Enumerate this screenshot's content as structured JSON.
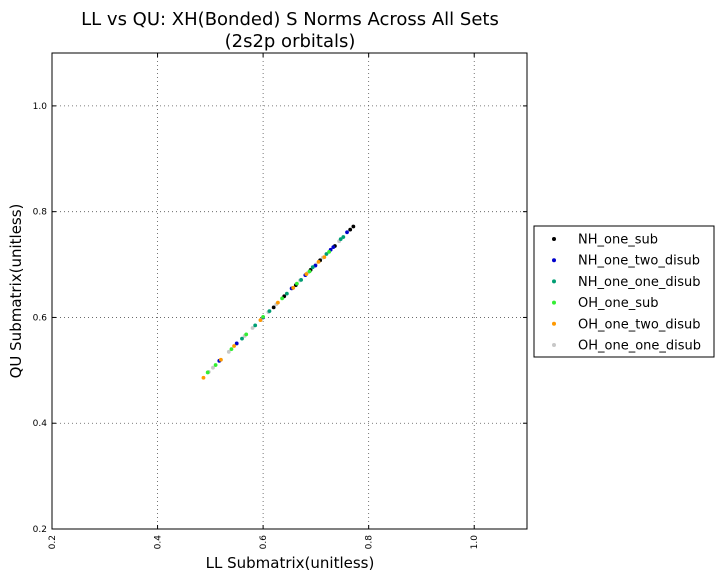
{
  "chart_data": {
    "type": "scatter",
    "title": [
      "LL vs QU: XH(Bonded) S Norms Across All Sets",
      "(2s2p orbitals)"
    ],
    "xlabel": "LL Submatrix(unitless)",
    "ylabel": "QU Submatrix(unitless)",
    "xlim": [
      0.2,
      1.1
    ],
    "ylim": [
      0.2,
      1.1
    ],
    "xticks": [
      "0.2",
      "0.4",
      "0.6",
      "0.8",
      "1.0"
    ],
    "yticks": [
      "0.2",
      "0.4",
      "0.6",
      "0.8",
      "1.0"
    ],
    "grid": true,
    "legend_position": "outside-right",
    "series": [
      {
        "name": "NH_one_sub",
        "color": "#000000",
        "points": [
          [
            0.771,
            0.772
          ],
          [
            0.765,
            0.766
          ],
          [
            0.736,
            0.735
          ],
          [
            0.708,
            0.708
          ],
          [
            0.69,
            0.69
          ],
          [
            0.662,
            0.661
          ],
          [
            0.64,
            0.64
          ],
          [
            0.62,
            0.619
          ]
        ]
      },
      {
        "name": "NH_one_two_disub",
        "color": "#0000cc",
        "points": [
          [
            0.759,
            0.761
          ],
          [
            0.733,
            0.733
          ],
          [
            0.728,
            0.728
          ],
          [
            0.699,
            0.698
          ],
          [
            0.68,
            0.68
          ],
          [
            0.654,
            0.655
          ],
          [
            0.6,
            0.6
          ],
          [
            0.55,
            0.551
          ],
          [
            0.517,
            0.518
          ]
        ]
      },
      {
        "name": "NH_one_one_disub",
        "color": "#009e73",
        "points": [
          [
            0.752,
            0.752
          ],
          [
            0.747,
            0.748
          ],
          [
            0.72,
            0.72
          ],
          [
            0.694,
            0.695
          ],
          [
            0.672,
            0.671
          ],
          [
            0.645,
            0.645
          ],
          [
            0.612,
            0.612
          ],
          [
            0.585,
            0.585
          ],
          [
            0.56,
            0.56
          ]
        ]
      },
      {
        "name": "OH_one_sub",
        "color": "#33ee33",
        "points": [
          [
            0.725,
            0.724
          ],
          [
            0.688,
            0.687
          ],
          [
            0.664,
            0.664
          ],
          [
            0.636,
            0.636
          ],
          [
            0.6,
            0.601
          ],
          [
            0.568,
            0.568
          ],
          [
            0.54,
            0.54
          ],
          [
            0.51,
            0.51
          ],
          [
            0.495,
            0.496
          ]
        ]
      },
      {
        "name": "OH_one_two_disub",
        "color": "#ff9900",
        "points": [
          [
            0.716,
            0.714
          ],
          [
            0.705,
            0.705
          ],
          [
            0.682,
            0.682
          ],
          [
            0.657,
            0.656
          ],
          [
            0.628,
            0.628
          ],
          [
            0.595,
            0.595
          ],
          [
            0.545,
            0.546
          ],
          [
            0.52,
            0.52
          ],
          [
            0.487,
            0.486
          ]
        ]
      },
      {
        "name": "OH_one_one_disub",
        "color": "#c8c8c8",
        "points": [
          [
            0.744,
            0.744
          ],
          [
            0.713,
            0.713
          ],
          [
            0.7,
            0.7
          ],
          [
            0.685,
            0.685
          ],
          [
            0.67,
            0.67
          ],
          [
            0.655,
            0.655
          ],
          [
            0.64,
            0.64
          ],
          [
            0.625,
            0.625
          ],
          [
            0.61,
            0.61
          ],
          [
            0.595,
            0.595
          ],
          [
            0.58,
            0.58
          ],
          [
            0.565,
            0.565
          ],
          [
            0.55,
            0.55
          ],
          [
            0.535,
            0.535
          ],
          [
            0.52,
            0.52
          ],
          [
            0.505,
            0.505
          ],
          [
            0.497,
            0.497
          ]
        ]
      }
    ]
  }
}
